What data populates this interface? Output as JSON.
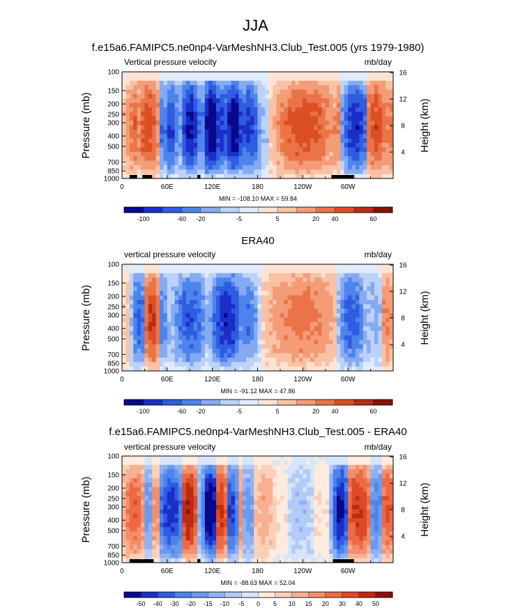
{
  "figure_title": "JJA",
  "colors": {
    "scale_a": [
      "#08088c",
      "#1a2ec8",
      "#2f5ce0",
      "#4d84ec",
      "#86aaf2",
      "#bcd2f8",
      "#e0ecfb",
      "#fde3d3",
      "#f9c2a5",
      "#f39c77",
      "#ea7448",
      "#dc4f24",
      "#b82c14",
      "#861208"
    ],
    "scale_b": [
      "#08088c",
      "#1a2ec8",
      "#2f5ce0",
      "#4d84ec",
      "#6a9aef",
      "#8fb2f3",
      "#b3cbf7",
      "#d7e5fa",
      "#fdebe0",
      "#fbd0b8",
      "#f8b092",
      "#f38e6b",
      "#ec6b45",
      "#de4a25",
      "#bd2b12",
      "#8c1208"
    ]
  },
  "chart_data": [
    {
      "type": "heatmap",
      "title": "f.e15a6.FAMIPC5.ne0np4-VarMeshNH3.Club_Test.005 (yrs 1979-1980)",
      "left_string": "Vertical pressure velocity",
      "right_string": "mb/day",
      "ylabel": "Pressure (mb)",
      "y2label": "Height (km)",
      "yticks": [
        "100",
        "150",
        "200",
        "250",
        "300",
        "400",
        "500",
        "700",
        "850",
        "1000"
      ],
      "y2ticks": [
        "16",
        "12",
        "8",
        "4"
      ],
      "xticks": [
        "0",
        "60E",
        "120E",
        "180",
        "120W",
        "60W"
      ],
      "x_range": [
        0,
        360
      ],
      "min": "-108.10",
      "max": "59.84",
      "min_max_text": "MIN = -108.10  MAX =  59.84",
      "colorbar_labels": [
        "-100",
        "-60",
        "-20",
        "-5",
        "5",
        "20",
        "40",
        "60"
      ],
      "colorbar_scale": "scale_a",
      "regions": [
        {
          "lon": [
            5,
            12
          ],
          "val": 0.35
        },
        {
          "lon": [
            12,
            22
          ],
          "val": 0.5
        },
        {
          "lon": [
            22,
            48
          ],
          "val": 0.6
        },
        {
          "lon": [
            48,
            58
          ],
          "val": -0.5
        },
        {
          "lon": [
            58,
            72
          ],
          "val": -0.65
        },
        {
          "lon": [
            72,
            80
          ],
          "val": -0.35
        },
        {
          "lon": [
            80,
            102
          ],
          "val": -0.8
        },
        {
          "lon": [
            102,
            110
          ],
          "val": -0.4
        },
        {
          "lon": [
            110,
            128
          ],
          "val": -0.95
        },
        {
          "lon": [
            128,
            140
          ],
          "val": -0.7
        },
        {
          "lon": [
            140,
            158
          ],
          "val": -0.9
        },
        {
          "lon": [
            158,
            180
          ],
          "val": -0.7
        },
        {
          "lon": [
            180,
            195
          ],
          "val": -0.25
        },
        {
          "lon": [
            205,
            280
          ],
          "val": 0.6
        },
        {
          "lon": [
            280,
            295
          ],
          "val": 0.4
        },
        {
          "lon": [
            295,
            325
          ],
          "val": -0.75
        },
        {
          "lon": [
            325,
            350
          ],
          "val": 0.6
        },
        {
          "lon": [
            350,
            360
          ],
          "val": 0.45
        }
      ],
      "terrain": [
        [
          10,
          20
        ],
        [
          27,
          40
        ],
        [
          100,
          104
        ],
        [
          278,
          308
        ]
      ]
    },
    {
      "type": "heatmap",
      "title": "ERA40",
      "left_string": "vertical pressure velocity",
      "right_string": "mb/day",
      "ylabel": "Pressure (mb)",
      "y2label": "Height (km)",
      "yticks": [
        "100",
        "150",
        "200",
        "250",
        "300",
        "400",
        "500",
        "700",
        "850",
        "1000"
      ],
      "y2ticks": [
        "16",
        "12",
        "8",
        "4"
      ],
      "xticks": [
        "0",
        "60E",
        "120E",
        "180",
        "120W",
        "60W"
      ],
      "x_range": [
        0,
        360
      ],
      "min": "-91.12",
      "max": "47.86",
      "min_max_text": "MIN = -91.12  MAX =  47.86",
      "colorbar_labels": [
        "-100",
        "-60",
        "-20",
        "-5",
        "5",
        "20",
        "40",
        "60"
      ],
      "colorbar_scale": "scale_a",
      "regions": [
        {
          "lon": [
            5,
            15
          ],
          "val": 0.2
        },
        {
          "lon": [
            15,
            32
          ],
          "val": -0.55
        },
        {
          "lon": [
            32,
            48
          ],
          "val": 0.65
        },
        {
          "lon": [
            48,
            60
          ],
          "val": -0.45
        },
        {
          "lon": [
            70,
            110
          ],
          "val": -0.6
        },
        {
          "lon": [
            120,
            158
          ],
          "val": -0.75
        },
        {
          "lon": [
            158,
            178
          ],
          "val": -0.5
        },
        {
          "lon": [
            195,
            285
          ],
          "val": 0.45
        },
        {
          "lon": [
            290,
            320
          ],
          "val": -0.6
        },
        {
          "lon": [
            320,
            345
          ],
          "val": -0.3
        },
        {
          "lon": [
            345,
            360
          ],
          "val": 0.4
        }
      ],
      "terrain": []
    },
    {
      "type": "heatmap",
      "title": "f.e15a6.FAMIPC5.ne0np4-VarMeshNH3.Club_Test.005 - ERA40",
      "left_string": "vertical pressure velocity",
      "right_string": "mb/day",
      "ylabel": "Pressure (mb)",
      "y2label": "Height (km)",
      "yticks": [
        "100",
        "150",
        "200",
        "250",
        "300",
        "400",
        "500",
        "700",
        "850",
        "1000"
      ],
      "y2ticks": [
        "16",
        "12",
        "8",
        "4"
      ],
      "xticks": [
        "0",
        "60E",
        "120E",
        "180",
        "120W",
        "60W"
      ],
      "x_range": [
        0,
        360
      ],
      "min": "-88.63",
      "max": "52.04",
      "min_max_text": "MIN = -88.63  MAX =  52.04",
      "colorbar_labels": [
        "-50",
        "-40",
        "-30",
        "-20",
        "-15",
        "-10",
        "-5",
        "0",
        "5",
        "10",
        "15",
        "20",
        "30",
        "40",
        "50"
      ],
      "colorbar_scale": "scale_b",
      "regions": [
        {
          "lon": [
            5,
            28
          ],
          "val": 0.55
        },
        {
          "lon": [
            28,
            40
          ],
          "val": -0.4
        },
        {
          "lon": [
            40,
            50
          ],
          "val": 0.4
        },
        {
          "lon": [
            50,
            80
          ],
          "val": -0.75
        },
        {
          "lon": [
            80,
            98
          ],
          "val": 0.8
        },
        {
          "lon": [
            98,
            108
          ],
          "val": -0.3
        },
        {
          "lon": [
            110,
            125
          ],
          "val": -0.95
        },
        {
          "lon": [
            125,
            138
          ],
          "val": 0.7
        },
        {
          "lon": [
            138,
            152
          ],
          "val": -0.7
        },
        {
          "lon": [
            152,
            162
          ],
          "val": 0.4
        },
        {
          "lon": [
            162,
            175
          ],
          "val": -0.4
        },
        {
          "lon": [
            175,
            200
          ],
          "val": 0.3
        },
        {
          "lon": [
            225,
            250
          ],
          "val": -0.2
        },
        {
          "lon": [
            282,
            298
          ],
          "val": -0.85
        },
        {
          "lon": [
            298,
            330
          ],
          "val": 0.7
        },
        {
          "lon": [
            330,
            345
          ],
          "val": -0.5
        },
        {
          "lon": [
            345,
            360
          ],
          "val": 0.6
        }
      ],
      "terrain": [
        [
          10,
          28
        ],
        [
          28,
          42
        ],
        [
          100,
          104
        ],
        [
          280,
          308
        ]
      ]
    }
  ]
}
